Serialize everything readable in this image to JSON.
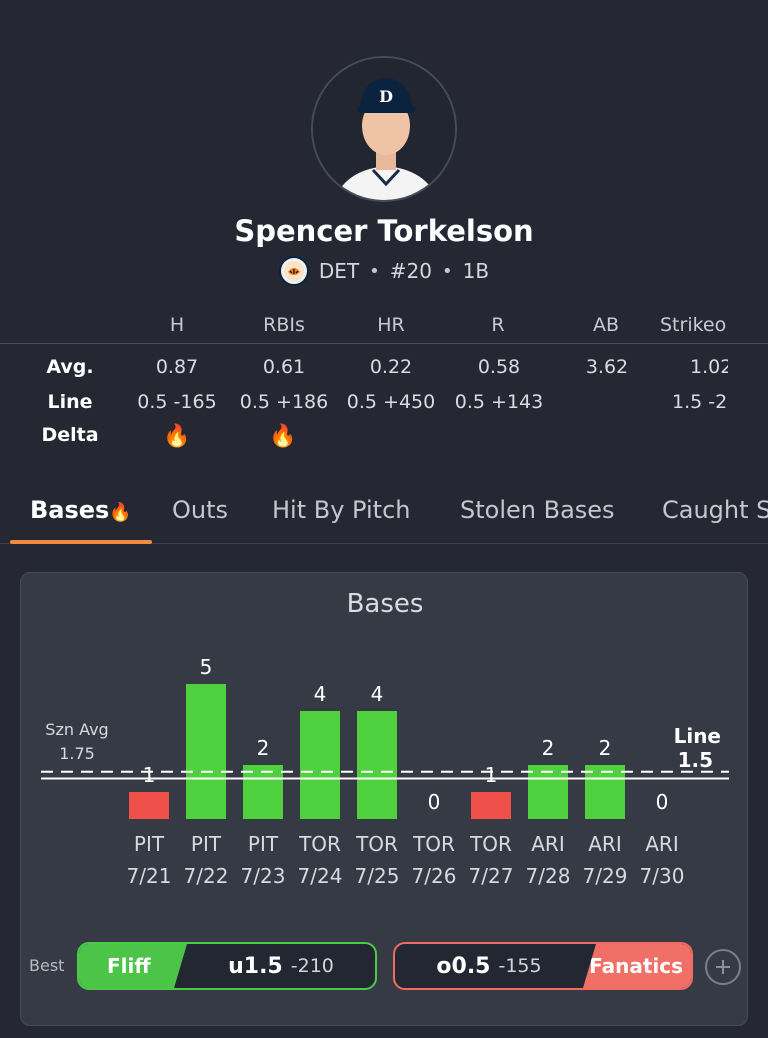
{
  "player": {
    "name": "Spencer Torkelson",
    "team": "DET",
    "number": "#20",
    "position": "1B",
    "photo_icon": "player-headshot",
    "team_logo_icon": "tigers-logo"
  },
  "stats": {
    "columns": [
      "H",
      "RBIs",
      "HR",
      "R",
      "AB",
      "Strikeo"
    ],
    "row_labels": {
      "avg": "Avg.",
      "line": "Line",
      "delta": "Delta"
    },
    "avg": [
      "0.87",
      "0.61",
      "0.22",
      "0.58",
      "3.62",
      "1.02"
    ],
    "line": [
      "0.5 -165",
      "0.5 +186",
      "0.5 +450",
      "0.5 +143",
      "",
      "1.5 -2"
    ],
    "delta_icon": "flame-icon",
    "delta_flames": [
      true,
      true,
      false,
      false,
      false,
      false
    ]
  },
  "tabs": [
    {
      "label": "Bases",
      "active": true,
      "flame": true
    },
    {
      "label": "Outs"
    },
    {
      "label": "Hit By Pitch"
    },
    {
      "label": "Stolen Bases"
    },
    {
      "label": "Caught S"
    }
  ],
  "card": {
    "title": "Bases",
    "szn_avg_label": "Szn Avg",
    "szn_avg_value": "1.75",
    "line_label": "Line",
    "line_value": "1.5"
  },
  "chart_data": {
    "type": "bar",
    "title": "Bases",
    "categories": [
      "PIT 7/21",
      "PIT 7/22",
      "PIT 7/23",
      "TOR 7/24",
      "TOR 7/25",
      "TOR 7/26",
      "TOR 7/27",
      "ARI 7/28",
      "ARI 7/29",
      "ARI 7/30"
    ],
    "opponents": [
      "PIT",
      "PIT",
      "PIT",
      "TOR",
      "TOR",
      "TOR",
      "TOR",
      "ARI",
      "ARI",
      "ARI"
    ],
    "dates": [
      "7/21",
      "7/22",
      "7/23",
      "7/24",
      "7/25",
      "7/26",
      "7/27",
      "7/28",
      "7/29",
      "7/30"
    ],
    "values": [
      1,
      5,
      2,
      4,
      4,
      0,
      1,
      2,
      2,
      0
    ],
    "season_avg": 1.75,
    "line": 1.5,
    "colors": {
      "over": "#4fd13f",
      "under": "#f0504a"
    }
  },
  "best": {
    "label": "Best",
    "under": {
      "book": "Fliff",
      "line": "u1.5",
      "price": "-210",
      "color": "#4cc447"
    },
    "over": {
      "book": "Fanatics",
      "line": "o0.5",
      "price": "-155",
      "color": "#f07068"
    },
    "add_icon": "plus-circle-icon"
  }
}
